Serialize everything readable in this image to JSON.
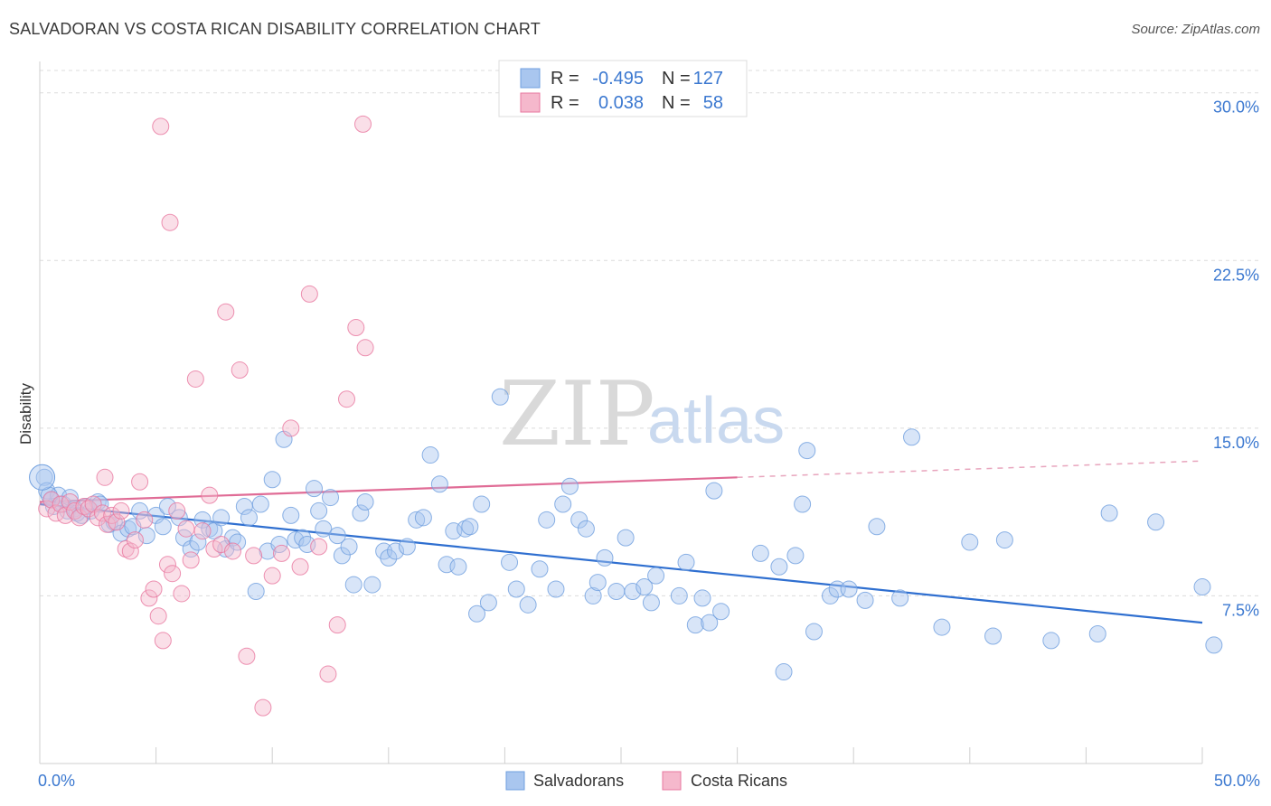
{
  "header": {
    "title": "SALVADORAN VS COSTA RICAN DISABILITY CORRELATION CHART",
    "source": "Source: ZipAtlas.com"
  },
  "watermark": {
    "part1": "ZIP",
    "part2": "atlas"
  },
  "legend": {
    "rows": [
      {
        "r_label": "R =",
        "r_value": "-0.495",
        "n_label": "N =",
        "n_value": "127",
        "color": "#a9c6ef"
      },
      {
        "r_label": "R =",
        "r_value": "0.038",
        "n_label": "N =",
        "n_value": "58",
        "color": "#f5b8cc"
      }
    ]
  },
  "bottom_legend": [
    {
      "label": "Salvadorans",
      "color": "#a9c6ef"
    },
    {
      "label": "Costa Ricans",
      "color": "#f5b8cc"
    }
  ],
  "chart_data": {
    "type": "scatter",
    "xlabel": "",
    "ylabel": "Disability",
    "xlim": [
      0,
      50
    ],
    "ylim": [
      0,
      31
    ],
    "x_tick_labels": [
      {
        "value": 0,
        "label": "0.0%"
      },
      {
        "value": 50,
        "label": "50.0%"
      }
    ],
    "y_ticks": [
      {
        "value": 7.5,
        "label": "7.5%"
      },
      {
        "value": 15.0,
        "label": "15.0%"
      },
      {
        "value": 22.5,
        "label": "22.5%"
      },
      {
        "value": 30.0,
        "label": "30.0%"
      }
    ],
    "grid": true,
    "series": [
      {
        "name": "Salvadorans",
        "color": "#6f9fdf",
        "fill": "#a9c6ef",
        "trend": {
          "x0": 0,
          "y0": 11.6,
          "x1": 50,
          "y1": 6.3
        },
        "points": [
          [
            0.2,
            12.8
          ],
          [
            0.3,
            12.2
          ],
          [
            0.5,
            11.8
          ],
          [
            0.6,
            11.5
          ],
          [
            0.8,
            12.0
          ],
          [
            1.0,
            11.6
          ],
          [
            1.2,
            11.3
          ],
          [
            1.3,
            11.9
          ],
          [
            1.5,
            11.4
          ],
          [
            1.6,
            11.2
          ],
          [
            1.8,
            11.1
          ],
          [
            2.0,
            11.5
          ],
          [
            2.2,
            11.3
          ],
          [
            2.5,
            11.7
          ],
          [
            2.6,
            11.6
          ],
          [
            3.0,
            10.7
          ],
          [
            3.2,
            10.8
          ],
          [
            3.5,
            10.3
          ],
          [
            3.8,
            10.5
          ],
          [
            4.0,
            10.6
          ],
          [
            4.3,
            11.3
          ],
          [
            4.6,
            10.2
          ],
          [
            5.0,
            11.1
          ],
          [
            5.3,
            10.6
          ],
          [
            5.5,
            11.5
          ],
          [
            6.0,
            11.0
          ],
          [
            6.2,
            10.1
          ],
          [
            6.5,
            9.6
          ],
          [
            6.8,
            9.9
          ],
          [
            7.0,
            10.9
          ],
          [
            7.3,
            10.5
          ],
          [
            7.5,
            10.4
          ],
          [
            7.8,
            11.0
          ],
          [
            8.0,
            9.6
          ],
          [
            8.3,
            10.1
          ],
          [
            8.5,
            9.9
          ],
          [
            8.8,
            11.5
          ],
          [
            9.0,
            11.0
          ],
          [
            9.3,
            7.7
          ],
          [
            9.5,
            11.6
          ],
          [
            9.8,
            9.5
          ],
          [
            10.0,
            12.7
          ],
          [
            10.3,
            9.8
          ],
          [
            10.5,
            14.5
          ],
          [
            10.8,
            11.1
          ],
          [
            11.0,
            10.0
          ],
          [
            11.3,
            10.1
          ],
          [
            11.5,
            9.8
          ],
          [
            11.8,
            12.3
          ],
          [
            12.0,
            11.3
          ],
          [
            12.2,
            10.5
          ],
          [
            12.5,
            11.9
          ],
          [
            12.8,
            10.2
          ],
          [
            13.0,
            9.3
          ],
          [
            13.3,
            9.7
          ],
          [
            13.5,
            8.0
          ],
          [
            13.8,
            11.2
          ],
          [
            14.0,
            11.7
          ],
          [
            14.3,
            8.0
          ],
          [
            14.8,
            9.5
          ],
          [
            15.0,
            9.2
          ],
          [
            15.3,
            9.5
          ],
          [
            15.8,
            9.7
          ],
          [
            16.2,
            10.9
          ],
          [
            16.5,
            11.0
          ],
          [
            16.8,
            13.8
          ],
          [
            17.2,
            12.5
          ],
          [
            17.5,
            8.9
          ],
          [
            17.8,
            10.4
          ],
          [
            18.0,
            8.8
          ],
          [
            18.3,
            10.5
          ],
          [
            18.5,
            10.6
          ],
          [
            18.8,
            6.7
          ],
          [
            19.0,
            11.6
          ],
          [
            19.3,
            7.2
          ],
          [
            19.8,
            16.4
          ],
          [
            20.2,
            9.0
          ],
          [
            20.5,
            7.8
          ],
          [
            21.0,
            7.1
          ],
          [
            21.5,
            8.7
          ],
          [
            21.8,
            10.9
          ],
          [
            22.2,
            7.8
          ],
          [
            22.5,
            11.6
          ],
          [
            22.8,
            12.4
          ],
          [
            23.2,
            10.9
          ],
          [
            23.5,
            10.5
          ],
          [
            23.8,
            7.5
          ],
          [
            24.0,
            8.1
          ],
          [
            24.3,
            9.2
          ],
          [
            24.8,
            7.7
          ],
          [
            25.2,
            10.1
          ],
          [
            25.5,
            7.7
          ],
          [
            26.0,
            7.9
          ],
          [
            26.3,
            7.2
          ],
          [
            26.5,
            8.4
          ],
          [
            27.5,
            7.5
          ],
          [
            27.8,
            9.0
          ],
          [
            28.2,
            6.2
          ],
          [
            28.5,
            7.4
          ],
          [
            28.8,
            6.3
          ],
          [
            29.0,
            12.2
          ],
          [
            29.3,
            6.8
          ],
          [
            31.0,
            9.4
          ],
          [
            31.8,
            8.8
          ],
          [
            32.0,
            4.1
          ],
          [
            32.5,
            9.3
          ],
          [
            32.8,
            11.6
          ],
          [
            33.0,
            14.0
          ],
          [
            33.3,
            5.9
          ],
          [
            34.0,
            7.5
          ],
          [
            34.3,
            7.8
          ],
          [
            34.8,
            7.8
          ],
          [
            35.5,
            7.3
          ],
          [
            36.0,
            10.6
          ],
          [
            37.0,
            7.4
          ],
          [
            37.5,
            14.6
          ],
          [
            38.8,
            6.1
          ],
          [
            40.0,
            9.9
          ],
          [
            41.0,
            5.7
          ],
          [
            41.5,
            10.0
          ],
          [
            43.5,
            5.5
          ],
          [
            45.5,
            5.8
          ],
          [
            46.0,
            11.2
          ],
          [
            48.0,
            10.8
          ],
          [
            50.0,
            7.9
          ],
          [
            50.5,
            5.3
          ],
          [
            0.4,
            12.0
          ]
        ]
      },
      {
        "name": "Costa Ricans",
        "color": "#e8779f",
        "fill": "#f5b8cc",
        "trend": {
          "x0": 0,
          "y0": 11.7,
          "x1": 30,
          "y1": 12.8
        },
        "points": [
          [
            0.3,
            11.4
          ],
          [
            0.5,
            11.8
          ],
          [
            0.7,
            11.2
          ],
          [
            0.9,
            11.6
          ],
          [
            1.1,
            11.1
          ],
          [
            1.3,
            11.7
          ],
          [
            1.5,
            11.3
          ],
          [
            1.7,
            11.0
          ],
          [
            1.9,
            11.5
          ],
          [
            2.1,
            11.4
          ],
          [
            2.3,
            11.6
          ],
          [
            2.5,
            11.0
          ],
          [
            2.7,
            11.2
          ],
          [
            2.9,
            10.7
          ],
          [
            3.1,
            11.1
          ],
          [
            3.3,
            10.8
          ],
          [
            3.5,
            11.3
          ],
          [
            3.7,
            9.6
          ],
          [
            3.9,
            9.5
          ],
          [
            4.1,
            10.0
          ],
          [
            4.3,
            12.6
          ],
          [
            4.5,
            10.9
          ],
          [
            4.7,
            7.4
          ],
          [
            4.9,
            7.8
          ],
          [
            5.1,
            6.6
          ],
          [
            5.3,
            5.5
          ],
          [
            5.5,
            8.9
          ],
          [
            5.7,
            8.5
          ],
          [
            5.9,
            11.3
          ],
          [
            6.1,
            7.6
          ],
          [
            6.3,
            10.5
          ],
          [
            6.5,
            9.1
          ],
          [
            6.7,
            17.2
          ],
          [
            7.0,
            10.4
          ],
          [
            7.3,
            12.0
          ],
          [
            7.5,
            9.6
          ],
          [
            7.8,
            9.8
          ],
          [
            8.0,
            20.2
          ],
          [
            8.3,
            9.5
          ],
          [
            8.6,
            17.6
          ],
          [
            8.9,
            4.8
          ],
          [
            9.2,
            9.3
          ],
          [
            9.6,
            2.5
          ],
          [
            10.0,
            8.4
          ],
          [
            10.4,
            9.4
          ],
          [
            10.8,
            15.0
          ],
          [
            11.2,
            8.8
          ],
          [
            11.6,
            21.0
          ],
          [
            12.0,
            9.7
          ],
          [
            12.4,
            4.0
          ],
          [
            12.8,
            6.2
          ],
          [
            13.2,
            16.3
          ],
          [
            13.6,
            19.5
          ],
          [
            14.0,
            18.6
          ],
          [
            5.2,
            28.5
          ],
          [
            5.6,
            24.2
          ],
          [
            13.9,
            28.6
          ],
          [
            2.8,
            12.8
          ]
        ]
      }
    ]
  }
}
